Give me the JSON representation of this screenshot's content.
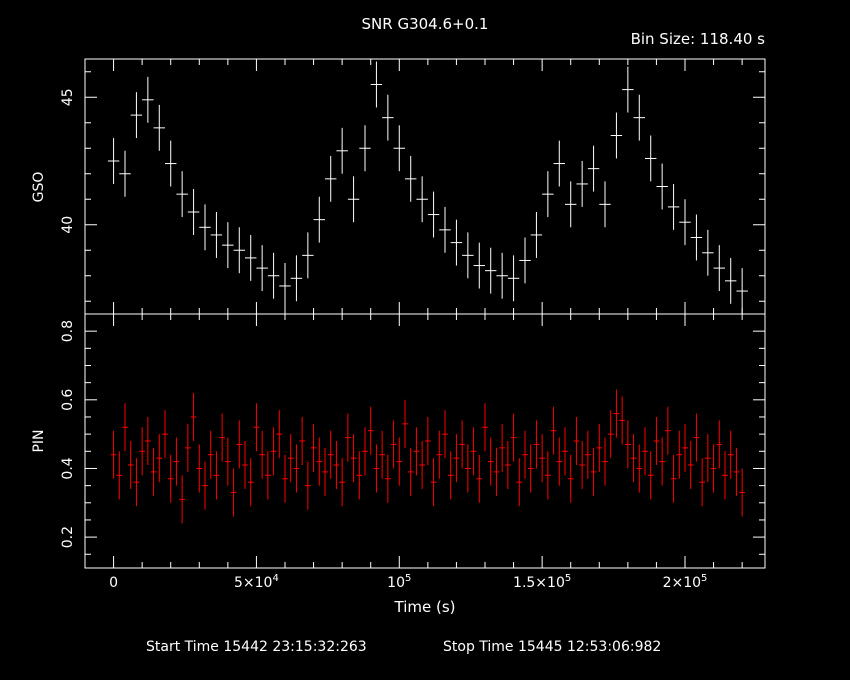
{
  "title": "SNR G304.6+0.1",
  "bin_size": "Bin Size: 118.40 s",
  "start_time": "Start Time 15442 23:15:32:263",
  "stop_time": "Stop Time 15445 12:53:06:982",
  "colors": {
    "background": "#000000",
    "axes": "#ffffff",
    "gso": "#ffffff",
    "pin": "#ff0000"
  },
  "chart_data": [
    {
      "type": "scatter",
      "name": "GSO panel",
      "ylabel": "GSO",
      "xlim": [
        -10000,
        228000
      ],
      "ylim": [
        36.5,
        46.5
      ],
      "yticks": [
        40,
        45
      ],
      "y_minor_step": 1,
      "error_bars": true,
      "x_step": 4000,
      "x": [
        0,
        4000,
        8000,
        12000,
        16000,
        20000,
        24000,
        28000,
        32000,
        36000,
        40000,
        44000,
        48000,
        52000,
        56000,
        60000,
        64000,
        68000,
        72000,
        76000,
        80000,
        84000,
        88000,
        92000,
        96000,
        100000,
        104000,
        108000,
        112000,
        116000,
        120000,
        124000,
        128000,
        132000,
        136000,
        140000,
        144000,
        148000,
        152000,
        156000,
        160000,
        164000,
        168000,
        172000,
        176000,
        180000,
        184000,
        188000,
        192000,
        196000,
        200000,
        204000,
        208000,
        212000,
        216000,
        220000
      ],
      "values": [
        42.5,
        42.0,
        44.3,
        44.9,
        43.8,
        42.4,
        41.2,
        40.5,
        39.9,
        39.6,
        39.2,
        39.0,
        38.7,
        38.3,
        38.0,
        37.6,
        37.9,
        38.8,
        40.2,
        41.8,
        42.9,
        41.0,
        43.0,
        45.5,
        44.2,
        43.0,
        41.8,
        41.0,
        40.4,
        39.8,
        39.3,
        38.8,
        38.4,
        38.2,
        38.0,
        37.9,
        38.6,
        39.6,
        41.2,
        42.4,
        40.8,
        41.6,
        42.2,
        40.8,
        43.5,
        45.3,
        44.2,
        42.6,
        41.5,
        40.7,
        40.1,
        39.5,
        38.9,
        38.3,
        37.8,
        37.4
      ],
      "errors": [
        0.9,
        0.9,
        0.9,
        0.9,
        0.9,
        0.9,
        0.9,
        0.9,
        0.9,
        0.9,
        0.9,
        0.9,
        0.9,
        0.9,
        0.9,
        0.9,
        0.9,
        0.9,
        0.9,
        0.9,
        0.9,
        0.9,
        0.9,
        0.9,
        0.9,
        0.9,
        0.9,
        0.9,
        0.9,
        0.9,
        0.9,
        0.9,
        0.9,
        0.9,
        0.9,
        0.9,
        0.9,
        0.9,
        0.9,
        0.9,
        0.9,
        0.9,
        0.9,
        0.9,
        0.9,
        0.9,
        0.9,
        0.9,
        0.9,
        0.9,
        0.9,
        0.9,
        0.9,
        0.9,
        0.9,
        0.9
      ]
    },
    {
      "type": "scatter",
      "name": "PIN panel",
      "ylabel": "PIN",
      "xlabel": "Time (s)",
      "xlim": [
        -10000,
        228000
      ],
      "ylim": [
        0.11,
        0.85
      ],
      "yticks": [
        0.2,
        0.4,
        0.6,
        0.8
      ],
      "y_minor_step": 0.05,
      "xticks": [
        {
          "value": 0,
          "label": "0"
        },
        {
          "value": 50000,
          "label": "5×10",
          "exp": "4"
        },
        {
          "value": 100000,
          "label": "10",
          "exp": "5"
        },
        {
          "value": 150000,
          "label": "1.5×10",
          "exp": "5"
        },
        {
          "value": 200000,
          "label": "2×10",
          "exp": "5"
        }
      ],
      "x_minor_step": 10000,
      "error_bars": true,
      "x_step": 2000,
      "x": [
        0,
        2000,
        4000,
        6000,
        8000,
        10000,
        12000,
        14000,
        16000,
        18000,
        20000,
        22000,
        24000,
        26000,
        28000,
        30000,
        32000,
        34000,
        36000,
        38000,
        40000,
        42000,
        44000,
        46000,
        48000,
        50000,
        52000,
        54000,
        56000,
        58000,
        60000,
        62000,
        64000,
        66000,
        68000,
        70000,
        72000,
        74000,
        76000,
        78000,
        80000,
        82000,
        84000,
        86000,
        88000,
        90000,
        92000,
        94000,
        96000,
        98000,
        100000,
        102000,
        104000,
        106000,
        108000,
        110000,
        112000,
        114000,
        116000,
        118000,
        120000,
        122000,
        124000,
        126000,
        128000,
        130000,
        132000,
        134000,
        136000,
        138000,
        140000,
        142000,
        144000,
        146000,
        148000,
        150000,
        152000,
        154000,
        156000,
        158000,
        160000,
        162000,
        164000,
        166000,
        168000,
        170000,
        172000,
        174000,
        176000,
        178000,
        180000,
        182000,
        184000,
        186000,
        188000,
        190000,
        192000,
        194000,
        196000,
        198000,
        200000,
        202000,
        204000,
        206000,
        208000,
        210000,
        212000,
        214000,
        216000,
        218000,
        220000
      ],
      "values": [
        0.44,
        0.38,
        0.52,
        0.41,
        0.36,
        0.45,
        0.48,
        0.39,
        0.43,
        0.5,
        0.37,
        0.42,
        0.31,
        0.46,
        0.55,
        0.4,
        0.35,
        0.44,
        0.38,
        0.49,
        0.42,
        0.33,
        0.47,
        0.41,
        0.36,
        0.52,
        0.44,
        0.38,
        0.45,
        0.5,
        0.37,
        0.43,
        0.4,
        0.48,
        0.35,
        0.46,
        0.42,
        0.39,
        0.44,
        0.41,
        0.36,
        0.49,
        0.43,
        0.38,
        0.45,
        0.51,
        0.4,
        0.44,
        0.37,
        0.47,
        0.42,
        0.53,
        0.39,
        0.45,
        0.41,
        0.48,
        0.36,
        0.44,
        0.5,
        0.38,
        0.43,
        0.47,
        0.4,
        0.45,
        0.37,
        0.52,
        0.42,
        0.39,
        0.46,
        0.41,
        0.49,
        0.36,
        0.44,
        0.4,
        0.47,
        0.43,
        0.38,
        0.51,
        0.42,
        0.45,
        0.37,
        0.48,
        0.41,
        0.44,
        0.39,
        0.46,
        0.42,
        0.5,
        0.56,
        0.54,
        0.47,
        0.43,
        0.4,
        0.45,
        0.38,
        0.48,
        0.42,
        0.51,
        0.37,
        0.44,
        0.46,
        0.41,
        0.49,
        0.36,
        0.43,
        0.4,
        0.47,
        0.38,
        0.44,
        0.39,
        0.33
      ],
      "errors": [
        0.07,
        0.07,
        0.07,
        0.07,
        0.07,
        0.07,
        0.07,
        0.07,
        0.07,
        0.07,
        0.07,
        0.07,
        0.07,
        0.07,
        0.07,
        0.07,
        0.07,
        0.07,
        0.07,
        0.07,
        0.07,
        0.07,
        0.07,
        0.07,
        0.07,
        0.07,
        0.07,
        0.07,
        0.07,
        0.07,
        0.07,
        0.07,
        0.07,
        0.07,
        0.07,
        0.07,
        0.07,
        0.07,
        0.07,
        0.07,
        0.07,
        0.07,
        0.07,
        0.07,
        0.07,
        0.07,
        0.07,
        0.07,
        0.07,
        0.07,
        0.07,
        0.07,
        0.07,
        0.07,
        0.07,
        0.07,
        0.07,
        0.07,
        0.07,
        0.07,
        0.07,
        0.07,
        0.07,
        0.07,
        0.07,
        0.07,
        0.07,
        0.07,
        0.07,
        0.07,
        0.07,
        0.07,
        0.07,
        0.07,
        0.07,
        0.07,
        0.07,
        0.07,
        0.07,
        0.07,
        0.07,
        0.07,
        0.07,
        0.07,
        0.07,
        0.07,
        0.07,
        0.07,
        0.07,
        0.07,
        0.07,
        0.07,
        0.07,
        0.07,
        0.07,
        0.07,
        0.07,
        0.07,
        0.07,
        0.07,
        0.07,
        0.07,
        0.07,
        0.07,
        0.07,
        0.07,
        0.07,
        0.07,
        0.07,
        0.07,
        0.07
      ]
    }
  ]
}
